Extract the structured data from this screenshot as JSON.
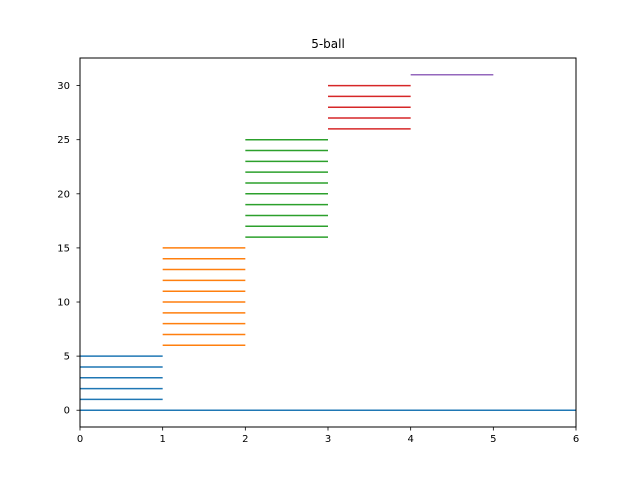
{
  "chart_data": {
    "type": "line",
    "title": "5-ball",
    "xlabel": "",
    "ylabel": "",
    "xlim": [
      0,
      6
    ],
    "ylim": [
      -1.55,
      32.55
    ],
    "xticks": [
      "0",
      "1",
      "2",
      "3",
      "4",
      "5",
      "6"
    ],
    "yticks": [
      "0",
      "5",
      "10",
      "15",
      "20",
      "25",
      "30"
    ],
    "xtick_values": [
      0,
      1,
      2,
      3,
      4,
      5,
      6
    ],
    "ytick_values": [
      0,
      5,
      10,
      15,
      20,
      25,
      30
    ],
    "grid": false,
    "series": [
      {
        "color": "#1f77b4",
        "segments": [
          {
            "x": [
              0,
              6
            ],
            "y": 0
          },
          {
            "x": [
              0,
              1
            ],
            "y": 1
          },
          {
            "x": [
              0,
              1
            ],
            "y": 2
          },
          {
            "x": [
              0,
              1
            ],
            "y": 3
          },
          {
            "x": [
              0,
              1
            ],
            "y": 4
          },
          {
            "x": [
              0,
              1
            ],
            "y": 5
          }
        ]
      },
      {
        "color": "#ff7f0e",
        "segments": [
          {
            "x": [
              1,
              2
            ],
            "y": 6
          },
          {
            "x": [
              1,
              2
            ],
            "y": 7
          },
          {
            "x": [
              1,
              2
            ],
            "y": 8
          },
          {
            "x": [
              1,
              2
            ],
            "y": 9
          },
          {
            "x": [
              1,
              2
            ],
            "y": 10
          },
          {
            "x": [
              1,
              2
            ],
            "y": 11
          },
          {
            "x": [
              1,
              2
            ],
            "y": 12
          },
          {
            "x": [
              1,
              2
            ],
            "y": 13
          },
          {
            "x": [
              1,
              2
            ],
            "y": 14
          },
          {
            "x": [
              1,
              2
            ],
            "y": 15
          }
        ]
      },
      {
        "color": "#2ca02c",
        "segments": [
          {
            "x": [
              2,
              3
            ],
            "y": 16
          },
          {
            "x": [
              2,
              3
            ],
            "y": 17
          },
          {
            "x": [
              2,
              3
            ],
            "y": 18
          },
          {
            "x": [
              2,
              3
            ],
            "y": 19
          },
          {
            "x": [
              2,
              3
            ],
            "y": 20
          },
          {
            "x": [
              2,
              3
            ],
            "y": 21
          },
          {
            "x": [
              2,
              3
            ],
            "y": 22
          },
          {
            "x": [
              2,
              3
            ],
            "y": 23
          },
          {
            "x": [
              2,
              3
            ],
            "y": 24
          },
          {
            "x": [
              2,
              3
            ],
            "y": 25
          }
        ]
      },
      {
        "color": "#d62728",
        "segments": [
          {
            "x": [
              3,
              4
            ],
            "y": 26
          },
          {
            "x": [
              3,
              4
            ],
            "y": 27
          },
          {
            "x": [
              3,
              4
            ],
            "y": 28
          },
          {
            "x": [
              3,
              4
            ],
            "y": 29
          },
          {
            "x": [
              3,
              4
            ],
            "y": 30
          }
        ]
      },
      {
        "color": "#9467bd",
        "segments": [
          {
            "x": [
              4,
              5
            ],
            "y": 31
          }
        ]
      }
    ]
  }
}
